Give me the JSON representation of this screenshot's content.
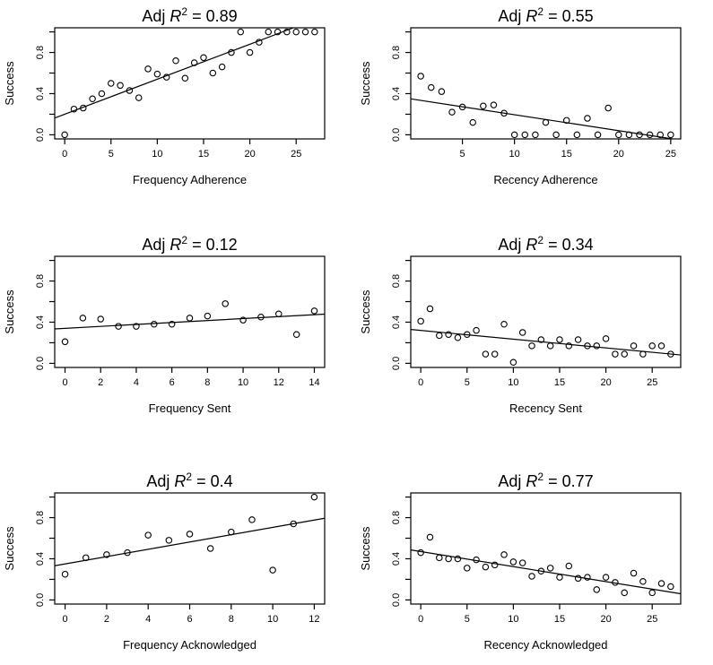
{
  "page": {
    "background_color": "#ffffff",
    "foreground_color": "#000000"
  },
  "title_format": {
    "prefix": "Adj ",
    "r_symbol": "R",
    "exponent": "2",
    "equals": " = "
  },
  "chart_data": [
    {
      "type": "scatter",
      "id": "frequency-adherence",
      "title": "Adj R² = 0.89",
      "r2": "0.89",
      "xlabel": "Frequency Adherence",
      "ylabel": "Success",
      "xlim": [
        -1.08,
        28.08
      ],
      "ylim": [
        -0.04,
        1.04
      ],
      "grid": false,
      "x_ticks": [
        0,
        5,
        10,
        15,
        20,
        25
      ],
      "y_ticks": [
        {
          "v": 0,
          "label": "0.0"
        },
        {
          "v": 0.2,
          "label": ""
        },
        {
          "v": 0.4,
          "label": "0.4"
        },
        {
          "v": 0.6,
          "label": ""
        },
        {
          "v": 0.8,
          "label": "0.8"
        },
        {
          "v": 1.0,
          "label": ""
        }
      ],
      "x": [
        0,
        1,
        2,
        3,
        4,
        5,
        6,
        7,
        8,
        9,
        10,
        11,
        12,
        13,
        14,
        15,
        16,
        17,
        18,
        19,
        20,
        21,
        22,
        23,
        24,
        25,
        26,
        27
      ],
      "y": [
        0.0,
        0.25,
        0.26,
        0.35,
        0.4,
        0.5,
        0.48,
        0.43,
        0.36,
        0.64,
        0.59,
        0.56,
        0.72,
        0.55,
        0.7,
        0.75,
        0.6,
        0.66,
        0.8,
        1.0,
        0.8,
        0.9,
        1.0,
        1.0,
        1.0,
        1.0,
        1.0,
        1.0
      ],
      "fit": {
        "intercept": 0.2,
        "slope": 0.034
      }
    },
    {
      "type": "scatter",
      "id": "recency-adherence",
      "title": "Adj R² = 0.55",
      "r2": "0.55",
      "xlabel": "Recency Adherence",
      "ylabel": "Success",
      "xlim": [
        0.04,
        25.96
      ],
      "ylim": [
        -0.04,
        1.04
      ],
      "grid": false,
      "x_ticks": [
        5,
        10,
        15,
        20,
        25
      ],
      "y_ticks": [
        {
          "v": 0,
          "label": "0.0"
        },
        {
          "v": 0.2,
          "label": ""
        },
        {
          "v": 0.4,
          "label": "0.4"
        },
        {
          "v": 0.6,
          "label": ""
        },
        {
          "v": 0.8,
          "label": "0.8"
        },
        {
          "v": 1.0,
          "label": ""
        }
      ],
      "x": [
        1,
        2,
        3,
        4,
        5,
        6,
        7,
        8,
        9,
        10,
        11,
        12,
        13,
        14,
        15,
        16,
        17,
        18,
        19,
        20,
        21,
        22,
        23,
        24,
        25
      ],
      "y": [
        0.57,
        0.46,
        0.42,
        0.22,
        0.27,
        0.12,
        0.28,
        0.29,
        0.21,
        0.0,
        0.0,
        0.0,
        0.12,
        0.0,
        0.14,
        0.0,
        0.16,
        0.0,
        0.26,
        0.0,
        0.0,
        0.0,
        0.0,
        0.0,
        0.0
      ],
      "fit": {
        "intercept": 0.35,
        "slope": -0.0155
      }
    },
    {
      "type": "scatter",
      "id": "frequency-sent",
      "title": "Adj R² = 0.12",
      "r2": "0.12",
      "xlabel": "Frequency Sent",
      "ylabel": "Success",
      "xlim": [
        -0.58,
        14.58
      ],
      "ylim": [
        -0.04,
        1.04
      ],
      "grid": false,
      "x_ticks": [
        0,
        2,
        4,
        6,
        8,
        10,
        12,
        14
      ],
      "y_ticks": [
        {
          "v": 0,
          "label": "0.0"
        },
        {
          "v": 0.2,
          "label": ""
        },
        {
          "v": 0.4,
          "label": "0.4"
        },
        {
          "v": 0.6,
          "label": ""
        },
        {
          "v": 0.8,
          "label": "0.8"
        },
        {
          "v": 1.0,
          "label": ""
        }
      ],
      "x": [
        0,
        1,
        2,
        3,
        4,
        5,
        6,
        7,
        8,
        9,
        10,
        11,
        12,
        13,
        14
      ],
      "y": [
        0.21,
        0.44,
        0.43,
        0.36,
        0.36,
        0.38,
        0.38,
        0.44,
        0.46,
        0.58,
        0.42,
        0.45,
        0.48,
        0.28,
        0.51
      ],
      "fit": {
        "intercept": 0.34,
        "slope": 0.0095
      }
    },
    {
      "type": "scatter",
      "id": "recency-sent",
      "title": "Adj R² = 0.34",
      "r2": "0.34",
      "xlabel": "Recency Sent",
      "ylabel": "Success",
      "xlim": [
        -1.08,
        28.08
      ],
      "ylim": [
        -0.04,
        1.04
      ],
      "grid": false,
      "x_ticks": [
        0,
        5,
        10,
        15,
        20,
        25
      ],
      "y_ticks": [
        {
          "v": 0,
          "label": "0.0"
        },
        {
          "v": 0.2,
          "label": ""
        },
        {
          "v": 0.4,
          "label": "0.4"
        },
        {
          "v": 0.6,
          "label": ""
        },
        {
          "v": 0.8,
          "label": "0.8"
        },
        {
          "v": 1.0,
          "label": ""
        }
      ],
      "x": [
        0,
        1,
        2,
        3,
        4,
        5,
        6,
        7,
        8,
        9,
        10,
        11,
        12,
        13,
        14,
        15,
        16,
        17,
        18,
        19,
        20,
        21,
        22,
        23,
        24,
        25,
        26,
        27
      ],
      "y": [
        0.41,
        0.53,
        0.27,
        0.28,
        0.25,
        0.28,
        0.32,
        0.09,
        0.09,
        0.38,
        0.01,
        0.3,
        0.17,
        0.23,
        0.17,
        0.23,
        0.17,
        0.23,
        0.17,
        0.17,
        0.24,
        0.09,
        0.09,
        0.17,
        0.09,
        0.17,
        0.17,
        0.09
      ],
      "fit": {
        "intercept": 0.32,
        "slope": -0.0085
      }
    },
    {
      "type": "scatter",
      "id": "frequency-acknowledged",
      "title": "Adj R² = 0.4",
      "r2": "0.4",
      "xlabel": "Frequency Acknowledged",
      "ylabel": "Success",
      "xlim": [
        -0.5,
        12.5
      ],
      "ylim": [
        -0.04,
        1.04
      ],
      "grid": false,
      "x_ticks": [
        0,
        2,
        4,
        6,
        8,
        10,
        12
      ],
      "y_ticks": [
        {
          "v": 0,
          "label": "0.0"
        },
        {
          "v": 0.2,
          "label": ""
        },
        {
          "v": 0.4,
          "label": "0.4"
        },
        {
          "v": 0.6,
          "label": ""
        },
        {
          "v": 0.8,
          "label": "0.8"
        },
        {
          "v": 1.0,
          "label": ""
        }
      ],
      "x": [
        0,
        1,
        2,
        3,
        4,
        5,
        6,
        7,
        8,
        9,
        10,
        11,
        12
      ],
      "y": [
        0.25,
        0.41,
        0.44,
        0.46,
        0.63,
        0.58,
        0.64,
        0.5,
        0.66,
        0.78,
        0.29,
        0.74,
        1.0
      ],
      "fit": {
        "intercept": 0.35,
        "slope": 0.0355
      }
    },
    {
      "type": "scatter",
      "id": "recency-acknowledged",
      "title": "Adj R² = 0.77",
      "r2": "0.77",
      "xlabel": "Recency Acknowledged",
      "ylabel": "Success",
      "xlim": [
        -1.08,
        28.08
      ],
      "ylim": [
        -0.04,
        1.04
      ],
      "grid": false,
      "x_ticks": [
        0,
        5,
        10,
        15,
        20,
        25
      ],
      "y_ticks": [
        {
          "v": 0,
          "label": "0.0"
        },
        {
          "v": 0.2,
          "label": ""
        },
        {
          "v": 0.4,
          "label": "0.4"
        },
        {
          "v": 0.6,
          "label": ""
        },
        {
          "v": 0.8,
          "label": "0.8"
        },
        {
          "v": 1.0,
          "label": ""
        }
      ],
      "x": [
        0,
        1,
        2,
        3,
        4,
        5,
        6,
        7,
        8,
        9,
        10,
        11,
        12,
        13,
        14,
        15,
        16,
        17,
        18,
        19,
        20,
        21,
        22,
        23,
        24,
        25,
        26,
        27
      ],
      "y": [
        0.46,
        0.61,
        0.41,
        0.4,
        0.4,
        0.31,
        0.39,
        0.32,
        0.34,
        0.44,
        0.37,
        0.36,
        0.23,
        0.28,
        0.31,
        0.22,
        0.33,
        0.21,
        0.22,
        0.1,
        0.22,
        0.17,
        0.07,
        0.26,
        0.18,
        0.07,
        0.16,
        0.13
      ],
      "fit": {
        "intercept": 0.47,
        "slope": -0.0146
      }
    }
  ]
}
